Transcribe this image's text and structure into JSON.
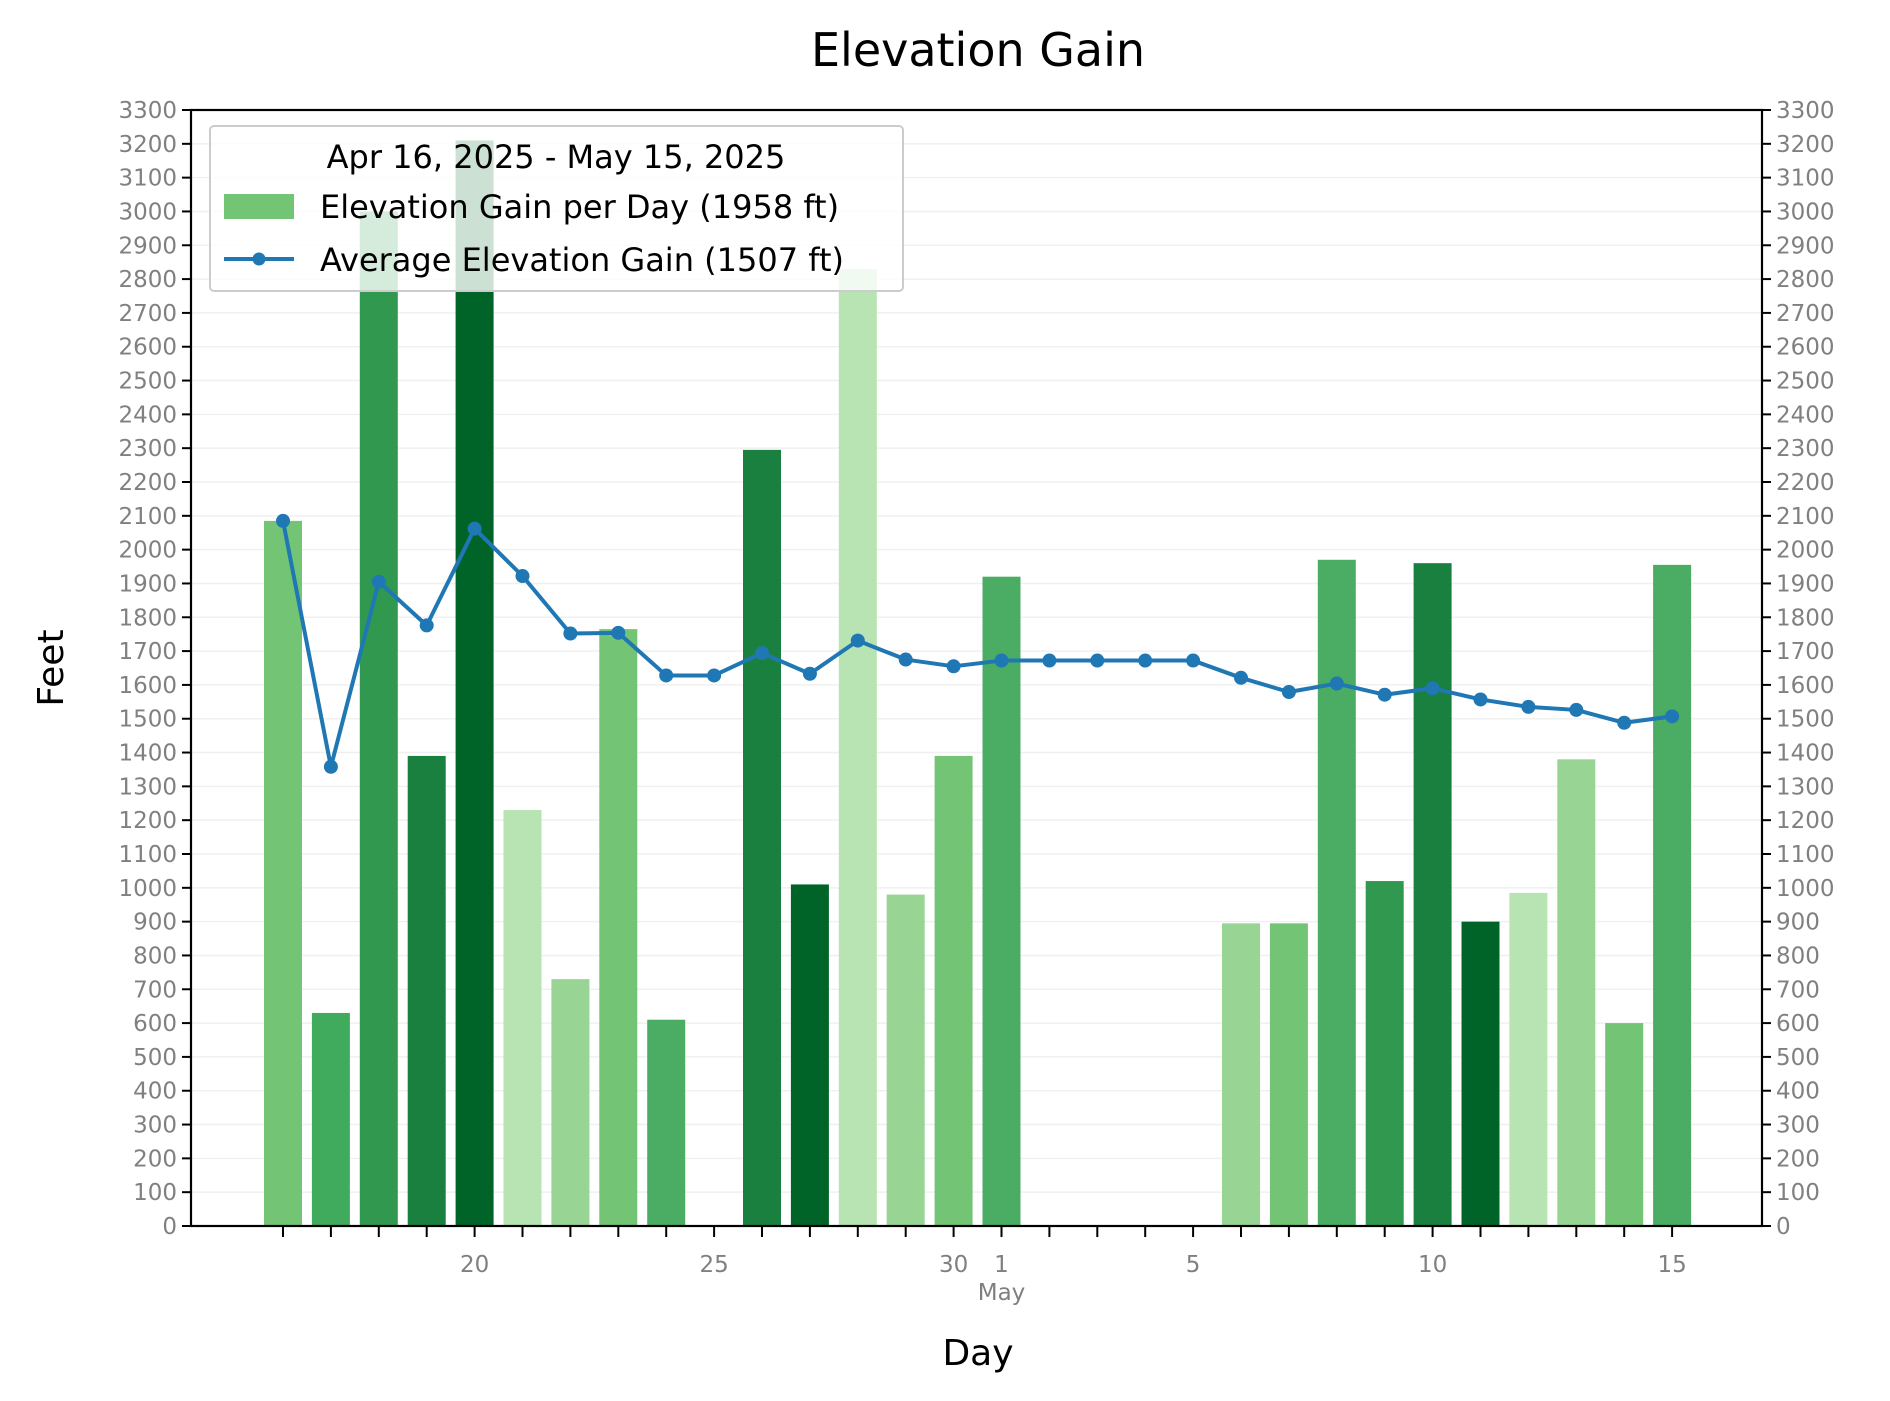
{
  "chart_data": {
    "type": "bar",
    "title": "Elevation Gain",
    "xlabel": "Day",
    "ylabel": "Feet",
    "ylim": [
      0,
      3300
    ],
    "y_tick_step": 100,
    "grid": "horizontal",
    "legend_position": "top-left",
    "legend_title": "Apr 16, 2025 - May 15, 2025",
    "x_tick_labels": [
      {
        "index": 4,
        "label": "20"
      },
      {
        "index": 9,
        "label": "25"
      },
      {
        "index": 14,
        "label": "30"
      },
      {
        "index": 15,
        "label": "1"
      },
      {
        "index": 19,
        "label": "5"
      },
      {
        "index": 24,
        "label": "10"
      },
      {
        "index": 29,
        "label": "15"
      }
    ],
    "x_month_label": {
      "index": 15,
      "label": "May"
    },
    "x": [
      "2025-04-16",
      "2025-04-17",
      "2025-04-18",
      "2025-04-19",
      "2025-04-20",
      "2025-04-21",
      "2025-04-22",
      "2025-04-23",
      "2025-04-24",
      "2025-04-25",
      "2025-04-26",
      "2025-04-27",
      "2025-04-28",
      "2025-04-29",
      "2025-04-30",
      "2025-05-01",
      "2025-05-02",
      "2025-05-03",
      "2025-05-04",
      "2025-05-05",
      "2025-05-06",
      "2025-05-07",
      "2025-05-08",
      "2025-05-09",
      "2025-05-10",
      "2025-05-11",
      "2025-05-12",
      "2025-05-13",
      "2025-05-14",
      "2025-05-15"
    ],
    "series": [
      {
        "name": "Elevation Gain per Day (1958 ft)",
        "type": "bar",
        "values": [
          2085,
          630,
          3000,
          1390,
          3210,
          1230,
          730,
          1765,
          610,
          0,
          2295,
          1010,
          2830,
          980,
          1390,
          1920,
          0,
          0,
          0,
          0,
          895,
          895,
          1970,
          1020,
          1960,
          900,
          985,
          1380,
          600,
          1955
        ],
        "colors": [
          "#74c476",
          "#41ab5d",
          "#31994f",
          "#19803f",
          "#006428",
          "#b8e3b2",
          "#98d594",
          "#74c476",
          "#4aad63",
          "#ffffff",
          "#19803f",
          "#006428",
          "#b8e3b2",
          "#98d594",
          "#74c476",
          "#4aad63",
          "#ffffff",
          "#ffffff",
          "#ffffff",
          "#ffffff",
          "#98d594",
          "#74c476",
          "#4aad63",
          "#31994f",
          "#19803f",
          "#006428",
          "#b8e3b2",
          "#98d594",
          "#74c476",
          "#4aad63"
        ],
        "legend_color": "#74c476"
      },
      {
        "name": "Average Elevation Gain (1507 ft)",
        "type": "line",
        "color": "#1f77b4",
        "values": [
          2085,
          1358,
          1905,
          1776,
          2062,
          1922,
          1752,
          1754,
          1628,
          1628,
          1694,
          1633,
          1731,
          1675,
          1655,
          1672,
          1672,
          1672,
          1672,
          1672,
          1621,
          1579,
          1604,
          1571,
          1590,
          1557,
          1535,
          1526,
          1488,
          1507
        ]
      }
    ]
  }
}
